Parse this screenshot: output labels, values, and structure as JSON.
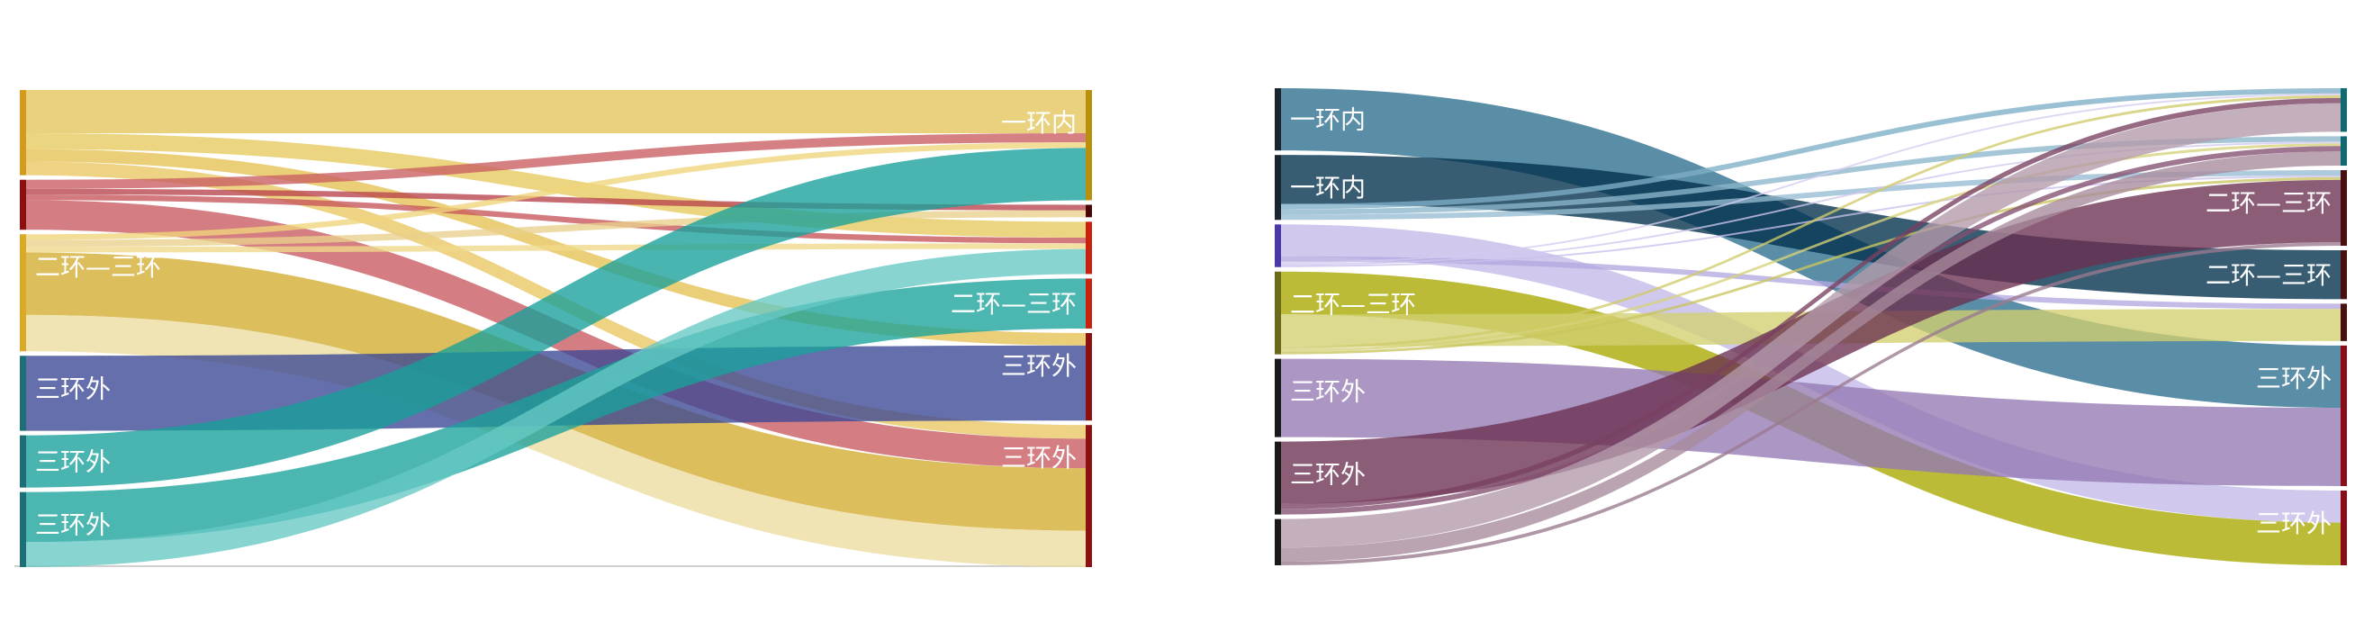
{
  "chart_data": [
    {
      "type": "sankey",
      "left_nodes": [
        {
          "id": "L1",
          "color": "#d39a1d",
          "flows": [
            {
              "to": "R1",
              "value": 3.8,
              "color": "#e3c45a"
            },
            {
              "to": "R3",
              "value": 1.4,
              "color": "#e7c95c"
            },
            {
              "to": "R5",
              "value": 1.1,
              "color": "#e5c252"
            },
            {
              "to": "R6",
              "value": 1.2,
              "color": "#e8c660"
            }
          ]
        },
        {
          "id": "L2",
          "color": "#8c1010",
          "flows": [
            {
              "to": "R1",
              "value": 0.8,
              "color": "#c95d62"
            },
            {
              "to": "R2",
              "value": 0.5,
              "color": "#b9424b"
            },
            {
              "to": "R3",
              "value": 0.5,
              "color": "#c6545a"
            },
            {
              "to": "R6",
              "value": 2.6,
              "color": "#c85a60"
            }
          ]
        },
        {
          "id": "L3",
          "label": "二环—三环",
          "color": "#dba928",
          "flows": [
            {
              "to": "R1",
              "value": 0.5,
              "color": "#f0d57b"
            },
            {
              "to": "R2",
              "value": 0.6,
              "color": "#e9d08a"
            },
            {
              "to": "R3",
              "value": 0.5,
              "color": "#f0d98a"
            },
            {
              "to": "R6",
              "value": 5.5,
              "color": "#d4ac30"
            },
            {
              "to": "R6",
              "value": 3.2,
              "color": "#ecdca0"
            }
          ]
        },
        {
          "id": "L4",
          "label": "三环外",
          "color": "#1e6e78",
          "flows": [
            {
              "to": "R5",
              "value": 6.6,
              "color": "#3a4794"
            }
          ]
        },
        {
          "id": "L5",
          "label": "三环外",
          "color": "#1e6e78",
          "flows": [
            {
              "to": "R1",
              "value": 4.6,
              "color": "#17a09a"
            }
          ]
        },
        {
          "id": "L6",
          "label": "三环外",
          "color": "#1e6e78",
          "flows": [
            {
              "to": "R4",
              "value": 4.4,
              "color": "#1aa19b"
            },
            {
              "to": "R3",
              "value": 2.2,
              "color": "#66c8c4"
            }
          ]
        }
      ],
      "right_nodes": [
        {
          "id": "R1",
          "label": "一环内",
          "color": "#b8900c"
        },
        {
          "id": "R2",
          "color": "#4a0606"
        },
        {
          "id": "R3",
          "color": "#c8220e"
        },
        {
          "id": "R4",
          "label": "二环—三环",
          "color": "#c8220e"
        },
        {
          "id": "R5",
          "label": "三环外",
          "color": "#8b1010"
        },
        {
          "id": "R6",
          "label": "三环外",
          "color": "#8b1010"
        }
      ]
    },
    {
      "type": "sankey",
      "left_nodes": [
        {
          "id": "L1",
          "label": "一环内",
          "color": "#1a2530",
          "flows": [
            {
              "to": "R6",
              "value": 7.0,
              "color": "#2c6d8d"
            }
          ]
        },
        {
          "id": "L2",
          "label": "一环内",
          "color": "#1a2530",
          "flows": [
            {
              "to": "R4",
              "value": 5.5,
              "color": "#00304c"
            },
            {
              "to": "R1",
              "value": 0.6,
              "color": "#7eaec6"
            },
            {
              "to": "R2",
              "value": 0.6,
              "color": "#8cb6cc"
            },
            {
              "to": "R3",
              "value": 0.6,
              "color": "#96bcd2"
            }
          ]
        },
        {
          "id": "L3",
          "color": "#4a3aa8",
          "flows": [
            {
              "to": "R7",
              "value": 3.6,
              "color": "#c3b9e8"
            },
            {
              "to": "R5",
              "value": 0.6,
              "color": "#b4a8e0"
            },
            {
              "to": "R1",
              "value": 0.2,
              "color": "#d4ccf0"
            },
            {
              "to": "R2",
              "value": 0.2,
              "color": "#d0c8ee"
            },
            {
              "to": "R3",
              "value": 0.2,
              "color": "#c9c0ec"
            }
          ]
        },
        {
          "id": "L4",
          "label": "二环—三环",
          "color": "#6a6a1a",
          "flows": [
            {
              "to": "R7",
              "value": 4.8,
              "color": "#a8a800"
            },
            {
              "to": "R5",
              "value": 3.6,
              "color": "#d2d070"
            },
            {
              "to": "R1",
              "value": 0.3,
              "color": "#cfcb6a"
            },
            {
              "to": "R2",
              "value": 0.3,
              "color": "#d6d27a"
            },
            {
              "to": "R3",
              "value": 0.3,
              "color": "#c9c560"
            }
          ]
        },
        {
          "id": "L5",
          "label": "三环外",
          "color": "#1a1a1a",
          "flows": [
            {
              "to": "R6",
              "value": 8.8,
              "color": "#9478b4"
            }
          ]
        },
        {
          "id": "L6",
          "label": "三环外",
          "color": "#1a1a1a",
          "flows": [
            {
              "to": "R3",
              "value": 7.0,
              "color": "#6a3050"
            },
            {
              "to": "R1",
              "value": 0.6,
              "color": "#7a4060"
            },
            {
              "to": "R2",
              "value": 0.6,
              "color": "#845070"
            }
          ]
        },
        {
          "id": "L7",
          "color": "#1a1a1a",
          "flows": [
            {
              "to": "R1",
              "value": 3.2,
              "color": "#b49aaa"
            },
            {
              "to": "R2",
              "value": 1.6,
              "color": "#a88a9c"
            },
            {
              "to": "R3",
              "value": 0.4,
              "color": "#9a7a8e"
            }
          ]
        }
      ],
      "right_nodes": [
        {
          "id": "R1",
          "color": "#0f6a72"
        },
        {
          "id": "R2",
          "color": "#0f6a72"
        },
        {
          "id": "R3",
          "label": "二环—三环",
          "color": "#4a1010"
        },
        {
          "id": "R4",
          "label": "二环—三环",
          "color": "#4a1010"
        },
        {
          "id": "R5",
          "color": "#4a1010"
        },
        {
          "id": "R6",
          "label": "三环外",
          "color": "#8b0d1a"
        },
        {
          "id": "R7",
          "label": "三环外",
          "color": "#8b0d1a"
        }
      ]
    }
  ]
}
